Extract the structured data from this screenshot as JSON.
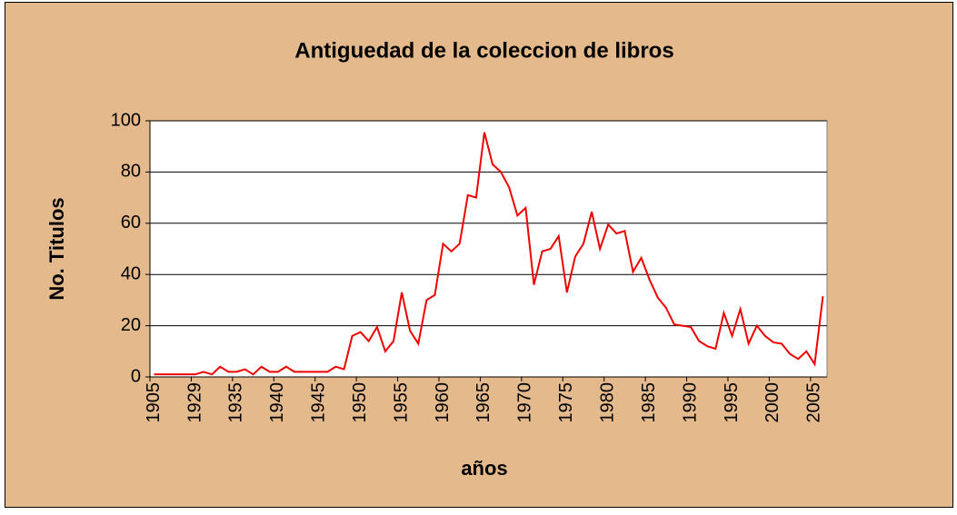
{
  "chart_data": {
    "type": "line",
    "title": "Antiguedad de la coleccion de libros",
    "x_label": "años",
    "y_label": "No. Titulos",
    "categories": [
      "1905",
      null,
      null,
      null,
      null,
      "1929",
      null,
      null,
      null,
      null,
      "1935",
      null,
      null,
      null,
      null,
      "1940",
      null,
      null,
      null,
      null,
      "1945",
      null,
      null,
      null,
      null,
      "1950",
      null,
      null,
      null,
      null,
      "1955",
      null,
      null,
      null,
      null,
      "1960",
      null,
      null,
      null,
      null,
      "1965",
      null,
      null,
      null,
      null,
      "1970",
      null,
      null,
      null,
      null,
      "1975",
      null,
      null,
      null,
      null,
      "1980",
      null,
      null,
      null,
      null,
      "1985",
      null,
      null,
      null,
      null,
      "1990",
      null,
      null,
      null,
      null,
      "1995",
      null,
      null,
      null,
      null,
      "2000",
      null,
      null,
      null,
      null,
      "2005",
      null
    ],
    "series": [
      {
        "name": "No. Titulos",
        "color": "#ee0000",
        "values": [
          1,
          1,
          1,
          1,
          1,
          1,
          2,
          1,
          4,
          2,
          2,
          3,
          1,
          4,
          2,
          2,
          4,
          2,
          2,
          2,
          2,
          2,
          4,
          3,
          16,
          17.5,
          14,
          19.5,
          10,
          14,
          33,
          18,
          13,
          30,
          32,
          52,
          49,
          52,
          71,
          70,
          95.5,
          83,
          80,
          74,
          63,
          66,
          36,
          49,
          50,
          55,
          33,
          47,
          52,
          64.5,
          50,
          59.5,
          56,
          57,
          41,
          46.5,
          38,
          31,
          27,
          20.5,
          20,
          19.5,
          14,
          12,
          11,
          25,
          16,
          26.5,
          13,
          20,
          16,
          13.5,
          13,
          9,
          7,
          10,
          5,
          31.5
        ]
      }
    ],
    "ylim": [
      0,
      100
    ],
    "yticks": [
      0,
      20,
      40,
      60,
      80,
      100
    ],
    "grid": true
  }
}
